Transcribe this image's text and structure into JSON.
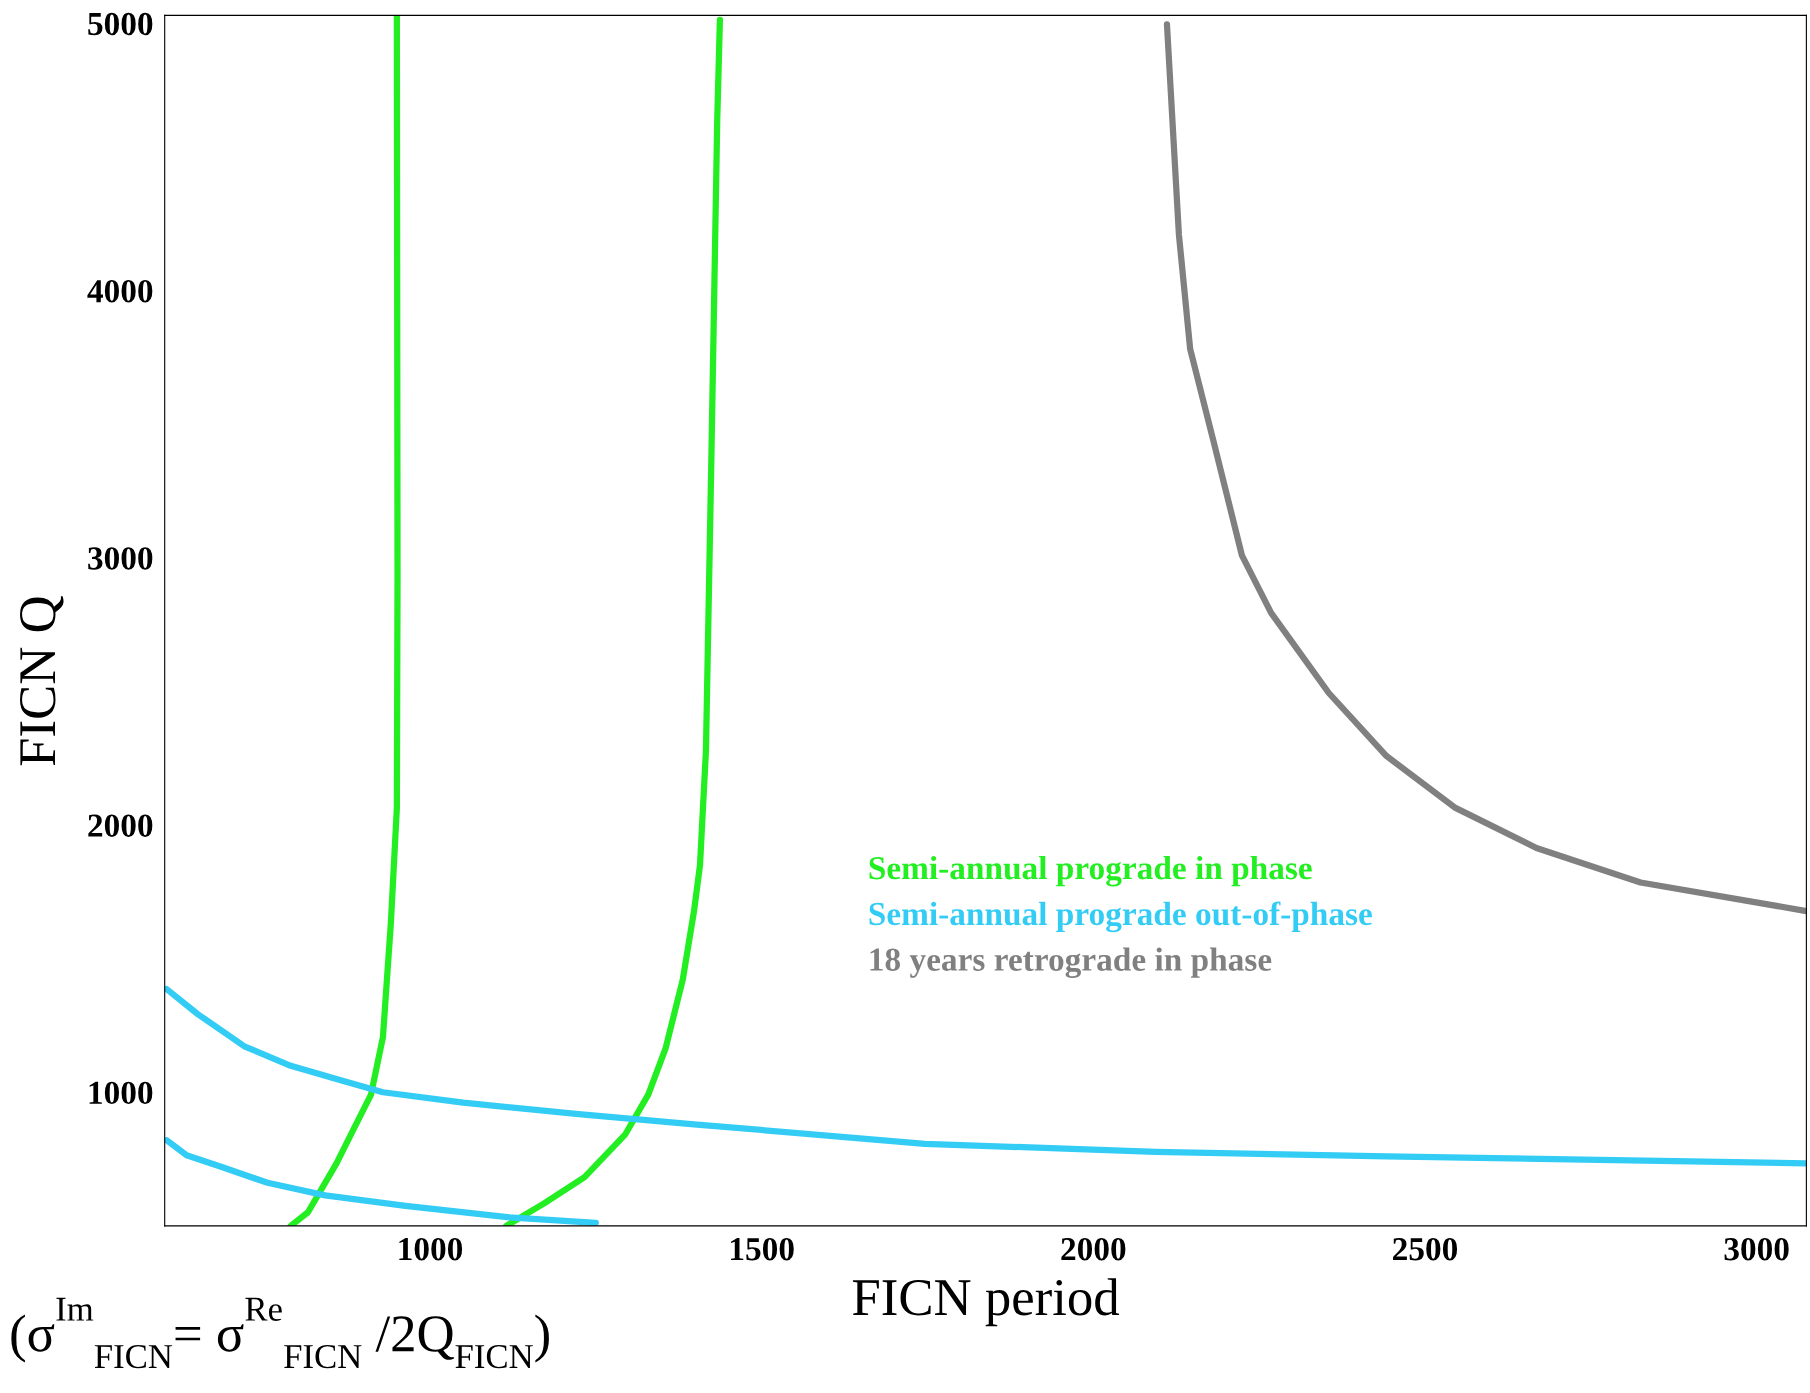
{
  "chart_data": {
    "type": "line",
    "xlabel": "FICN period",
    "ylabel": "FICN Q",
    "xlim": [
      600,
      3075
    ],
    "ylim": [
      500,
      5030
    ],
    "xticks": [
      1000,
      1500,
      2000,
      2500,
      3000
    ],
    "yticks": [
      1000,
      2000,
      3000,
      4000,
      5000
    ],
    "grid": false,
    "legend": "lower right",
    "marker": "none",
    "line_style": "solid",
    "series": [
      {
        "name": "Semi-annual prograde in phase",
        "color": "#22ee22",
        "x": [
          790,
          816,
          859,
          885,
          911,
          929,
          941,
          950,
          951,
          950
        ],
        "values": [
          500,
          551,
          734,
          863,
          991,
          1206,
          1635,
          2064,
          2923,
          5026
        ]
      },
      {
        "color": "#22ee22",
        "x": [
          1115,
          1172,
          1233,
          1294,
          1329,
          1355,
          1381,
          1398,
          1407,
          1416,
          1424,
          1433,
          1437
        ],
        "values": [
          500,
          584,
          682,
          841,
          991,
          1163,
          1421,
          1678,
          1850,
          2279,
          3352,
          4639,
          5013
        ]
      },
      {
        "name": "Semi-annual prograde out-of-phase",
        "color": "#33ccf5",
        "x": [
          603,
          650,
          720,
          790,
          868,
          929,
          1050,
          1224,
          1398,
          1746,
          2094,
          2442,
          3075
        ],
        "values": [
          1386,
          1292,
          1172,
          1099,
          1043,
          1000,
          961,
          918,
          880,
          807,
          777,
          760,
          734
        ]
      },
      {
        "color": "#33ccf5",
        "x": [
          603,
          633,
          685,
          755,
          842,
          963,
          1120,
          1250
        ],
        "values": [
          820,
          764,
          721,
          661,
          614,
          575,
          532,
          511
        ]
      },
      {
        "name": "18 years retrograde in phase",
        "color": "#808080",
        "x": [
          2111,
          2129,
          2146,
          2181,
          2224,
          2268,
          2355,
          2442,
          2546,
          2668,
          2825,
          3075
        ],
        "values": [
          4996,
          4210,
          3781,
          3438,
          3009,
          2794,
          2494,
          2258,
          2064,
          1914,
          1785,
          1678
        ]
      }
    ],
    "annotations": [
      "(σ$^{Im}$$_{FICN}$= σ$^{Re}$$_{FICN}$ /2Q$_{FICN}$)"
    ]
  }
}
